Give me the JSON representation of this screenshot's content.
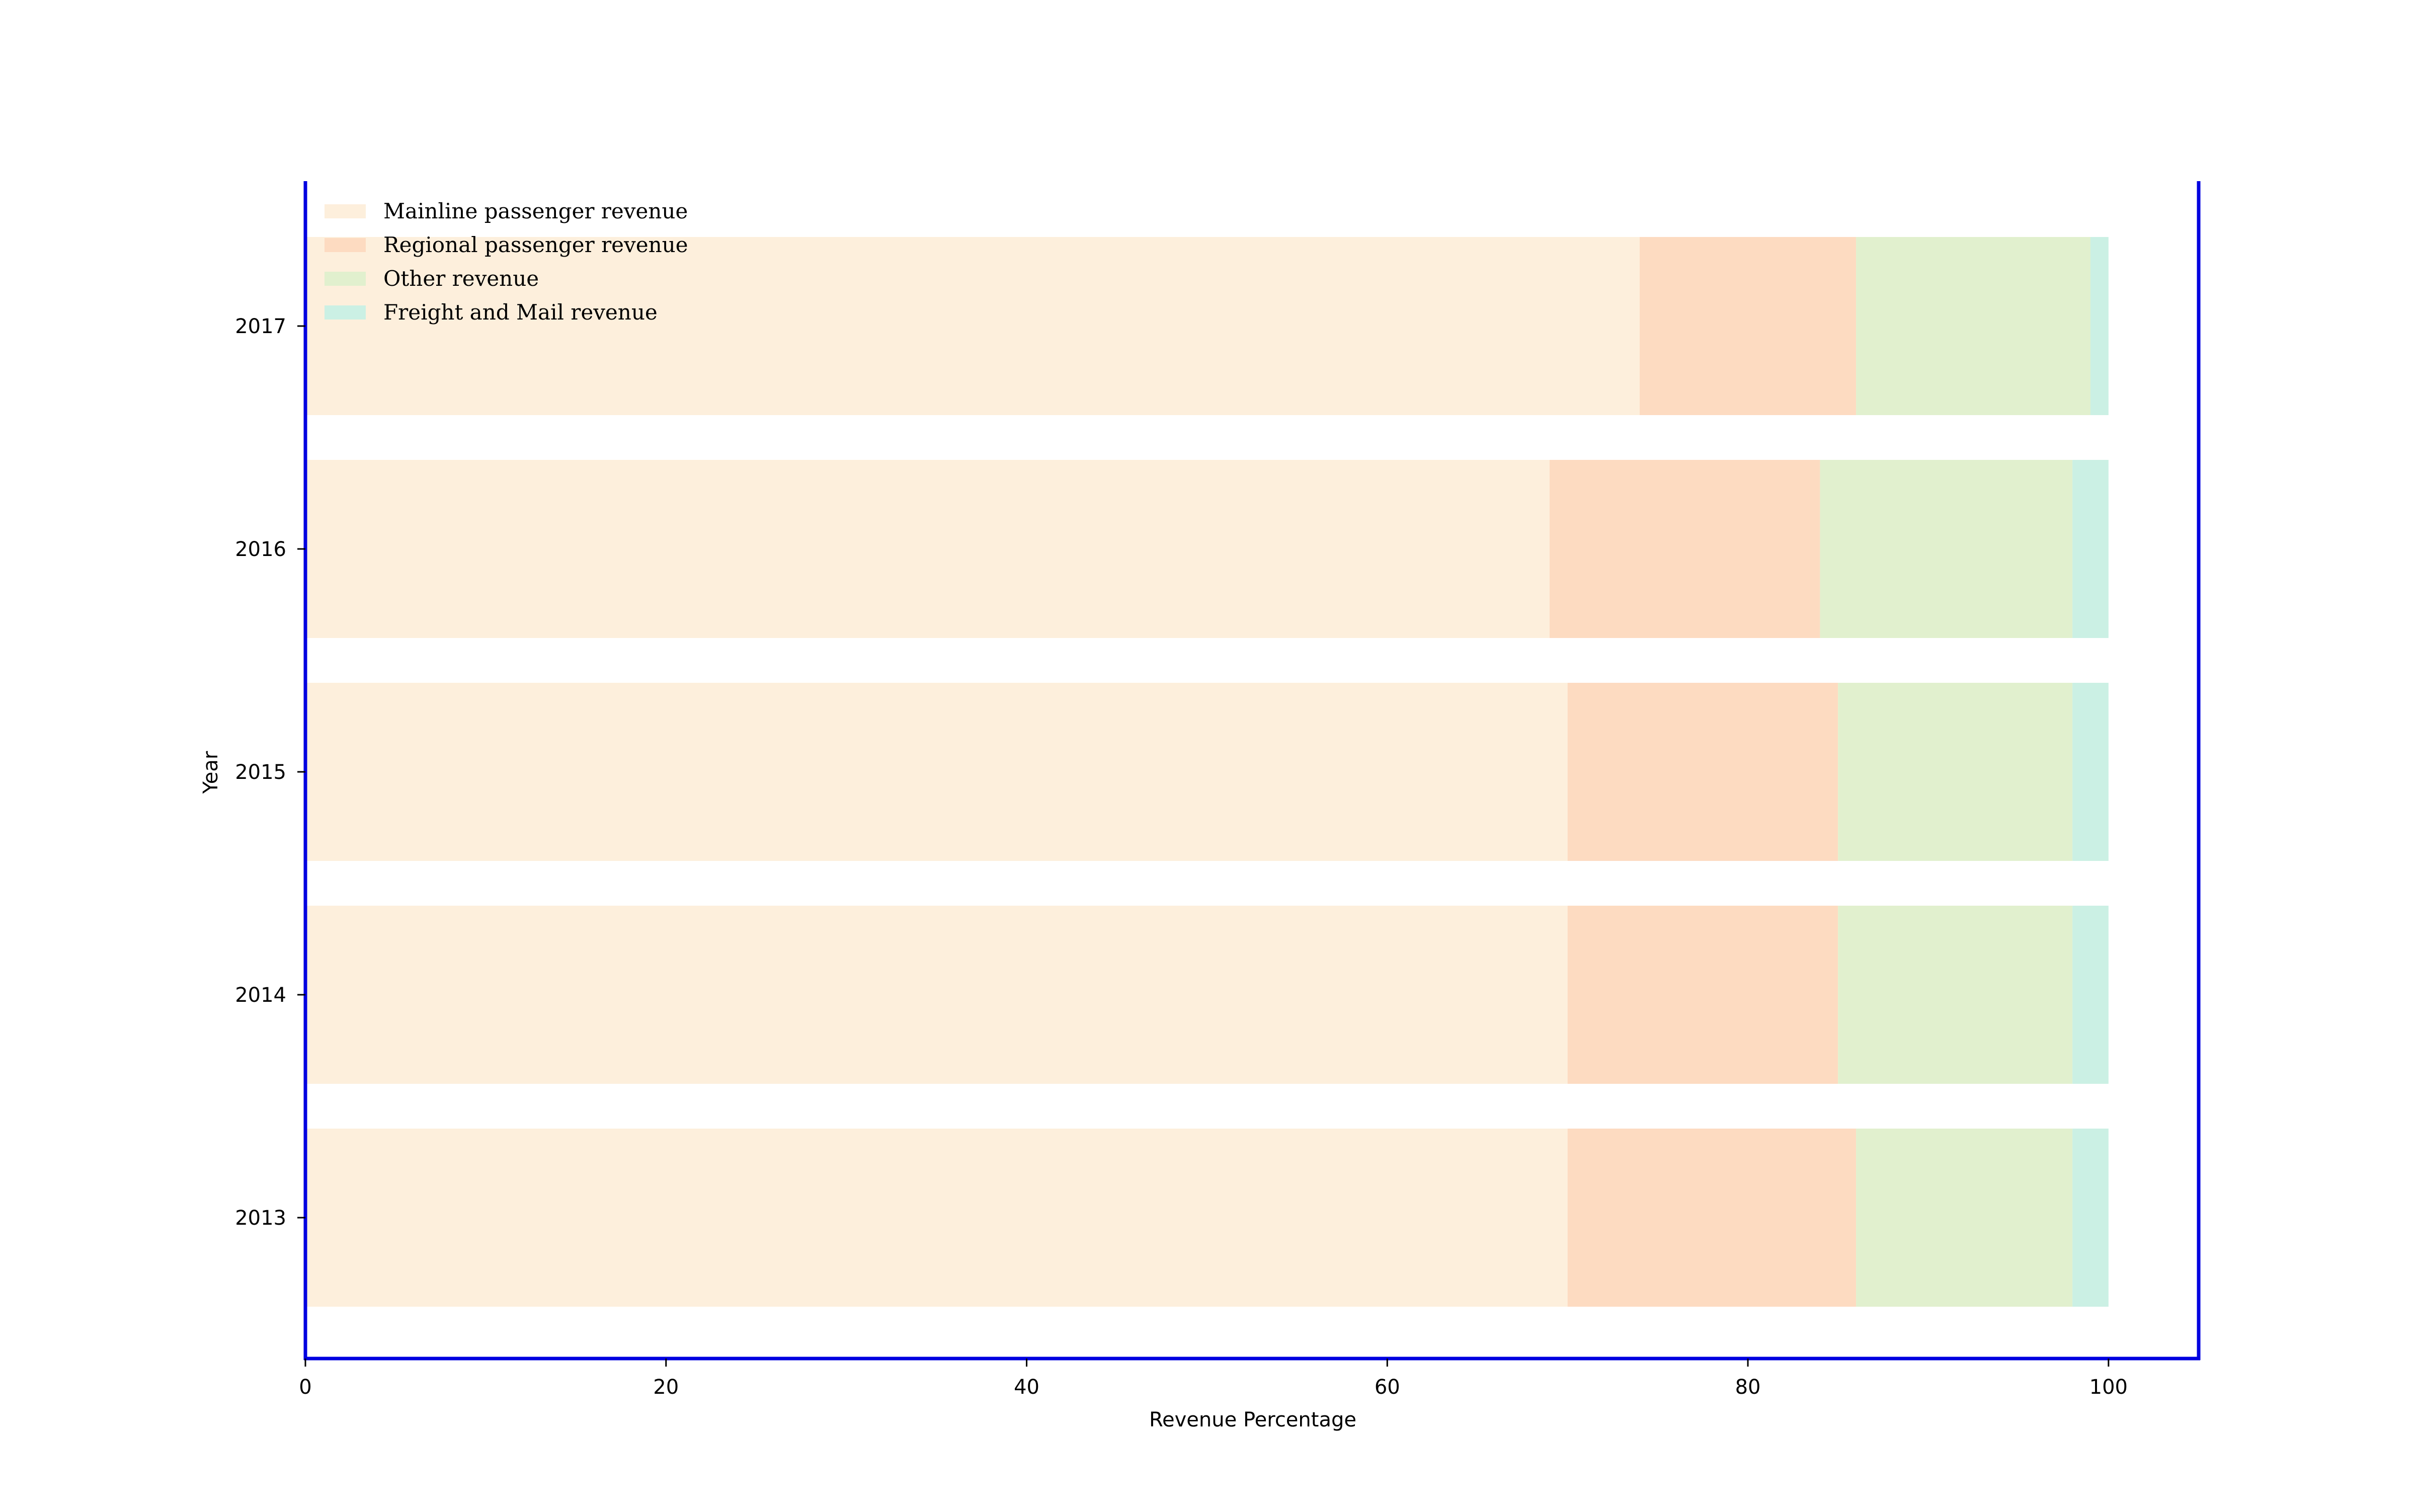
{
  "chart_data": {
    "type": "bar",
    "orientation": "horizontal",
    "stacked": true,
    "title": "",
    "xlabel": "Revenue Percentage",
    "ylabel": "Year",
    "categories": [
      "2013",
      "2014",
      "2015",
      "2016",
      "2017"
    ],
    "series": [
      {
        "name": "Mainline passenger revenue",
        "values": [
          70,
          70,
          70,
          69,
          74
        ],
        "color": "#fdefdc"
      },
      {
        "name": "Regional passenger revenue",
        "values": [
          16,
          15,
          15,
          15,
          12
        ],
        "color": "#fddbc1"
      },
      {
        "name": "Other revenue",
        "values": [
          12,
          13,
          13,
          14,
          13
        ],
        "color": "#e1f0ce"
      },
      {
        "name": "Freight and Mail revenue",
        "values": [
          2,
          2,
          2,
          2,
          1
        ],
        "color": "#cbf0e4"
      }
    ],
    "xlim": [
      0,
      105
    ],
    "xticks": [
      "0",
      "20",
      "40",
      "60",
      "80",
      "100"
    ],
    "grid": false,
    "legend_position": "top-left",
    "spine_color": "#0000e0"
  }
}
